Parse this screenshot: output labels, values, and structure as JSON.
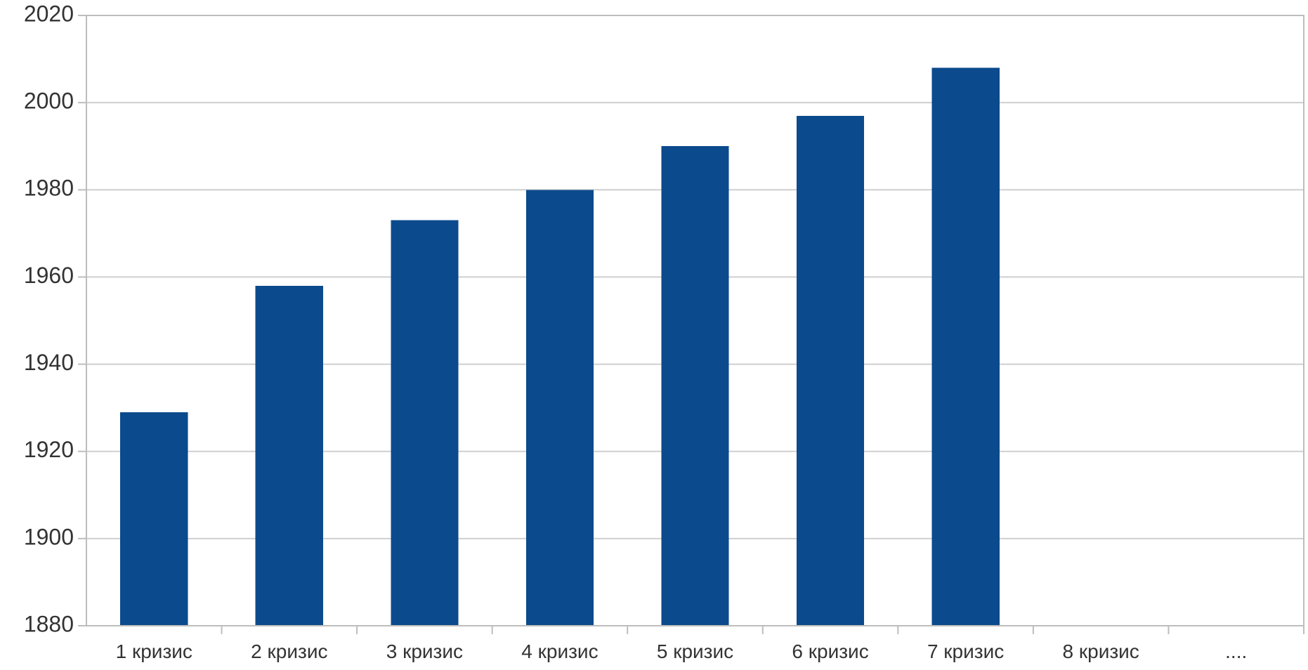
{
  "chart_data": {
    "type": "bar",
    "categories": [
      "1 кризис",
      "2 кризис",
      "3 кризис",
      "4 кризис",
      "5 кризис",
      "6 кризис",
      "7 кризис",
      "8 кризис",
      "...."
    ],
    "values": [
      1929,
      1958,
      1973,
      1980,
      1990,
      1997,
      2008,
      null,
      null
    ],
    "ylim": [
      1880,
      2020
    ],
    "yticks": [
      1880,
      1900,
      1920,
      1940,
      1960,
      1980,
      2000,
      2020
    ],
    "grid": true,
    "legend": "none",
    "bar_color": "#0b4a8c"
  }
}
